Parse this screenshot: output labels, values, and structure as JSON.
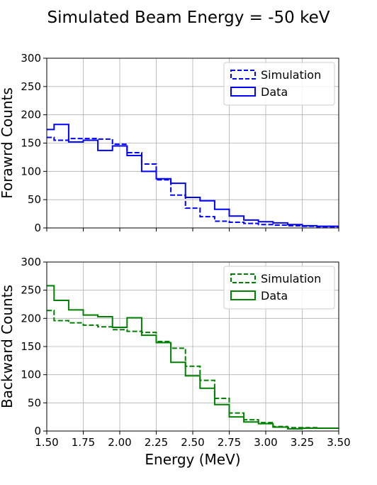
{
  "figure": {
    "title": "Simulated Beam Energy = -50 keV"
  },
  "chart_data": [
    {
      "type": "histogram",
      "ylabel": "Forawrd Counts",
      "xlabel": "",
      "xlim": [
        1.5,
        3.5
      ],
      "ylim": [
        0,
        300
      ],
      "grid": true,
      "legend_position": "top-right",
      "x_ticks": [
        "1.50",
        "1.75",
        "2.00",
        "2.25",
        "2.50",
        "2.75",
        "3.00",
        "3.25",
        "3.50"
      ],
      "y_ticks": [
        "0",
        "50",
        "100",
        "150",
        "200",
        "250",
        "300"
      ],
      "x_tick_labels_shown": false,
      "bin_edges": [
        1.5,
        1.55,
        1.65,
        1.75,
        1.85,
        1.95,
        2.05,
        2.15,
        2.25,
        2.35,
        2.45,
        2.55,
        2.65,
        2.75,
        2.85,
        2.95,
        3.05,
        3.15,
        3.25,
        3.35,
        3.5
      ],
      "series": [
        {
          "name": "Simulation",
          "style": "dashed",
          "color": "#0000ff",
          "values": [
            160,
            155,
            158,
            158,
            157,
            148,
            133,
            113,
            85,
            58,
            35,
            20,
            12,
            10,
            8,
            6,
            5,
            4,
            3,
            2
          ]
        },
        {
          "name": "Data",
          "style": "solid",
          "color": "#0000ff",
          "values": [
            174,
            183,
            152,
            155,
            137,
            145,
            128,
            100,
            87,
            79,
            54,
            48,
            33,
            21,
            14,
            11,
            9,
            6,
            4,
            3
          ]
        }
      ]
    },
    {
      "type": "histogram",
      "ylabel": "Backward Counts",
      "xlabel": "Energy (MeV)",
      "xlim": [
        1.5,
        3.5
      ],
      "ylim": [
        0,
        300
      ],
      "grid": true,
      "legend_position": "top-right",
      "x_ticks": [
        "1.50",
        "1.75",
        "2.00",
        "2.25",
        "2.50",
        "2.75",
        "3.00",
        "3.25",
        "3.50"
      ],
      "y_ticks": [
        "0",
        "50",
        "100",
        "150",
        "200",
        "250",
        "300"
      ],
      "x_tick_labels_shown": true,
      "bin_edges": [
        1.5,
        1.55,
        1.65,
        1.75,
        1.85,
        1.95,
        2.05,
        2.15,
        2.25,
        2.35,
        2.45,
        2.55,
        2.65,
        2.75,
        2.85,
        2.95,
        3.05,
        3.15,
        3.25,
        3.35,
        3.5
      ],
      "series": [
        {
          "name": "Simulation",
          "style": "dashed",
          "color": "#008000",
          "values": [
            214,
            196,
            192,
            188,
            185,
            180,
            177,
            175,
            159,
            147,
            115,
            90,
            58,
            32,
            20,
            15,
            8,
            6,
            6,
            5
          ]
        },
        {
          "name": "Data",
          "style": "solid",
          "color": "#008000",
          "values": [
            258,
            232,
            215,
            206,
            203,
            184,
            201,
            170,
            157,
            122,
            98,
            76,
            47,
            25,
            16,
            13,
            7,
            4,
            5,
            5
          ]
        }
      ]
    }
  ]
}
